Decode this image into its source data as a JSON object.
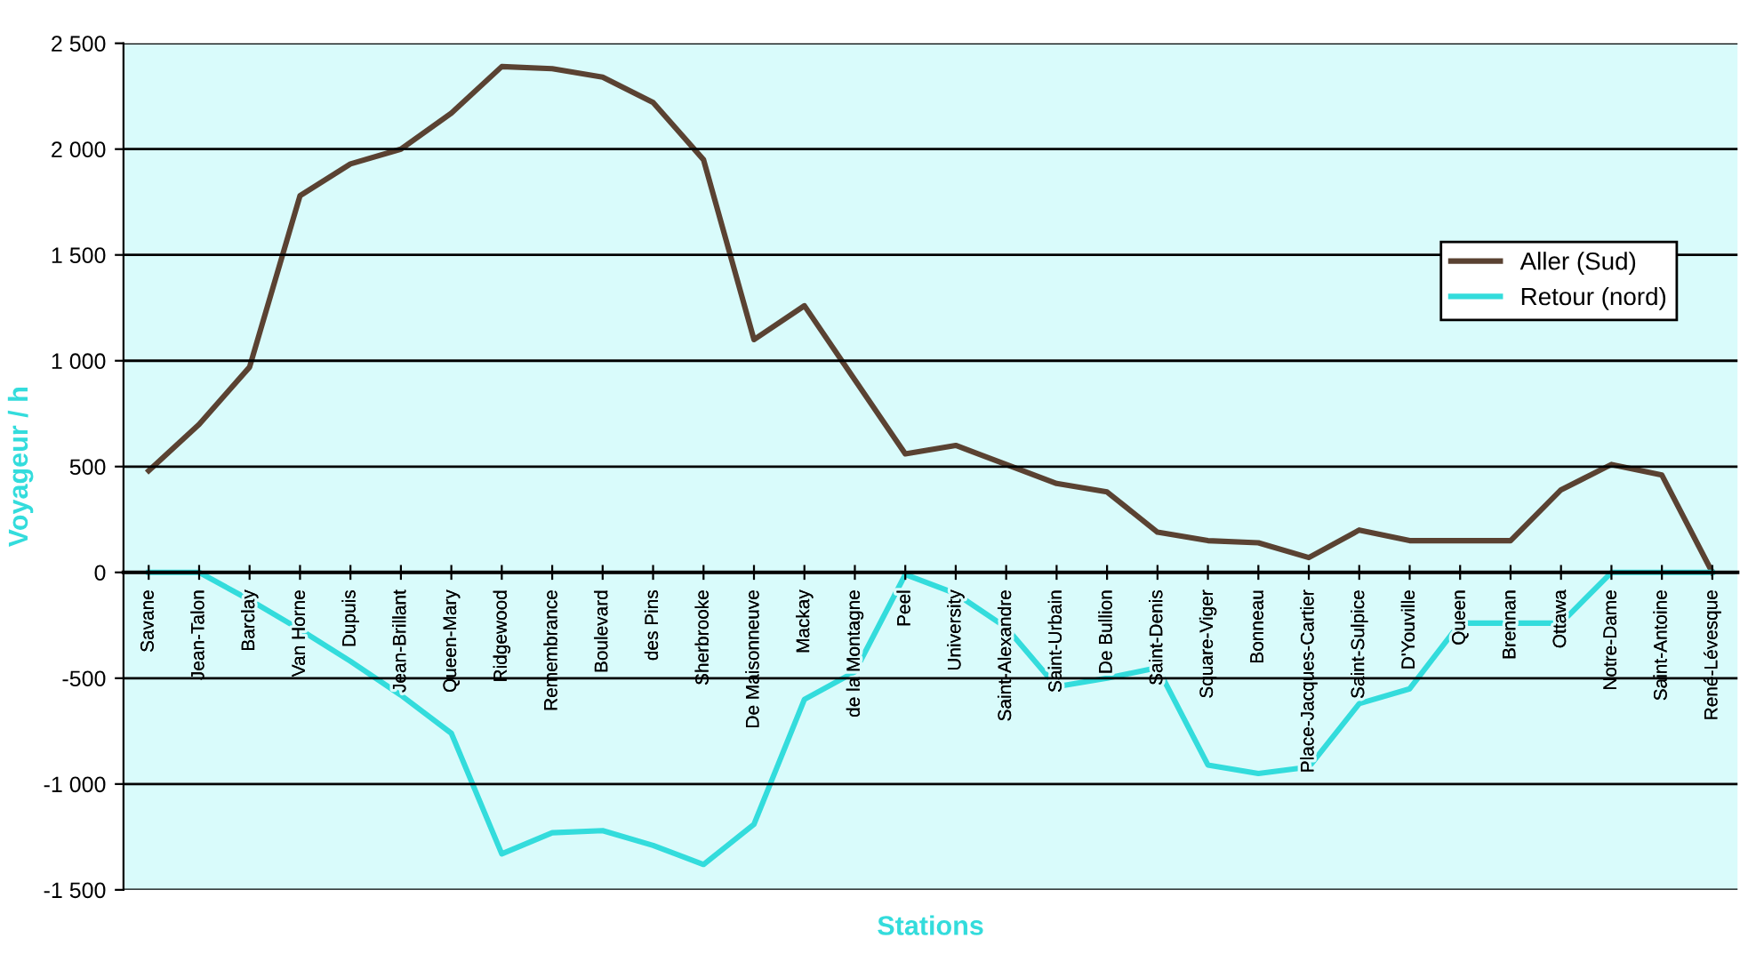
{
  "chart_data": {
    "type": "line",
    "xlabel": "Stations",
    "ylabel": "Voyageur / h",
    "categories": [
      "Savane",
      "Jean-Talon",
      "Barclay",
      "Van Horne",
      "Dupuis",
      "Jean-Brillant",
      "Queen-Mary",
      "Ridgewood",
      "Remembrance",
      "Boulevard",
      "des Pins",
      "Sherbrooke",
      "De Maisonneuve",
      "Mackay",
      "de la Montagne",
      "Peel",
      "University",
      "Saint-Alexandre",
      "Saint-Urbain",
      "De Bullion",
      "Saint-Denis",
      "Square-Viger",
      "Bonneau",
      "Place-Jacques-Cartier",
      "Saint-Sulpice",
      "D'Youville",
      "Queen",
      "Brennan",
      "Ottawa",
      "Notre-Dame",
      "Saint-Antoine",
      "René-Lévesque"
    ],
    "series": [
      {
        "name": "Aller (Sud)",
        "color": "#5a4232",
        "values": [
          480,
          700,
          970,
          1780,
          1930,
          2000,
          2170,
          2390,
          2380,
          2340,
          2220,
          1950,
          1100,
          1260,
          910,
          560,
          600,
          510,
          420,
          380,
          190,
          150,
          140,
          70,
          200,
          150,
          150,
          150,
          390,
          510,
          460,
          0
        ]
      },
      {
        "name": "Retour (nord)",
        "color": "#33dcdc",
        "values": [
          0,
          0,
          -130,
          -270,
          -420,
          -580,
          -760,
          -1330,
          -1230,
          -1220,
          -1290,
          -1380,
          -1190,
          -600,
          -470,
          -10,
          -100,
          -260,
          -540,
          -500,
          -450,
          -910,
          -950,
          -920,
          -620,
          -550,
          -240,
          -240,
          -240,
          0,
          0,
          0
        ]
      }
    ],
    "ylim": [
      -1500,
      2500
    ],
    "yticks": [
      {
        "value": -1500,
        "label": "-1 500"
      },
      {
        "value": -1000,
        "label": "-1 000"
      },
      -500,
      0,
      500,
      {
        "value": 1000,
        "label": "1 000"
      },
      {
        "value": 1500,
        "label": "1 500"
      },
      {
        "value": 2000,
        "label": "2 000"
      },
      {
        "value": 2500,
        "label": "2 500"
      }
    ],
    "grid": "y",
    "legend": "top right",
    "marker": "none",
    "line_style": "solid"
  }
}
